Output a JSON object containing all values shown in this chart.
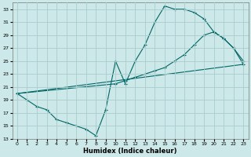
{
  "xlabel": "Humidex (Indice chaleur)",
  "bg_color": "#cce8e8",
  "grid_color": "#aacccc",
  "line_color": "#006666",
  "xlim": [
    -0.5,
    23.5
  ],
  "ylim": [
    13,
    34
  ],
  "xticks": [
    0,
    1,
    2,
    3,
    4,
    5,
    6,
    7,
    8,
    9,
    10,
    11,
    12,
    13,
    14,
    15,
    16,
    17,
    18,
    19,
    20,
    21,
    22,
    23
  ],
  "yticks": [
    13,
    15,
    17,
    19,
    21,
    23,
    25,
    27,
    29,
    31,
    33
  ],
  "line1_x": [
    0,
    1,
    2,
    3,
    4,
    5,
    6,
    7,
    8,
    9,
    10,
    11,
    12,
    13,
    14,
    15,
    16,
    17,
    18,
    19,
    20,
    21,
    22,
    23
  ],
  "line1_y": [
    20,
    19,
    18,
    17.5,
    16,
    15.5,
    15,
    14.5,
    13.5,
    17.5,
    25,
    21.5,
    25,
    27.5,
    31,
    33.5,
    33,
    33,
    32.5,
    31.5,
    29.5,
    28.5,
    27,
    25
  ],
  "line2_x": [
    0,
    10,
    11,
    12,
    13,
    14,
    15,
    16,
    17,
    18,
    19,
    20,
    21,
    22,
    23
  ],
  "line2_y": [
    20,
    21.5,
    22,
    22.5,
    23,
    23.5,
    24,
    25,
    26,
    27.5,
    29,
    29.5,
    28.5,
    27,
    24.5
  ],
  "line3_x": [
    0,
    23
  ],
  "line3_y": [
    20,
    24.5
  ]
}
